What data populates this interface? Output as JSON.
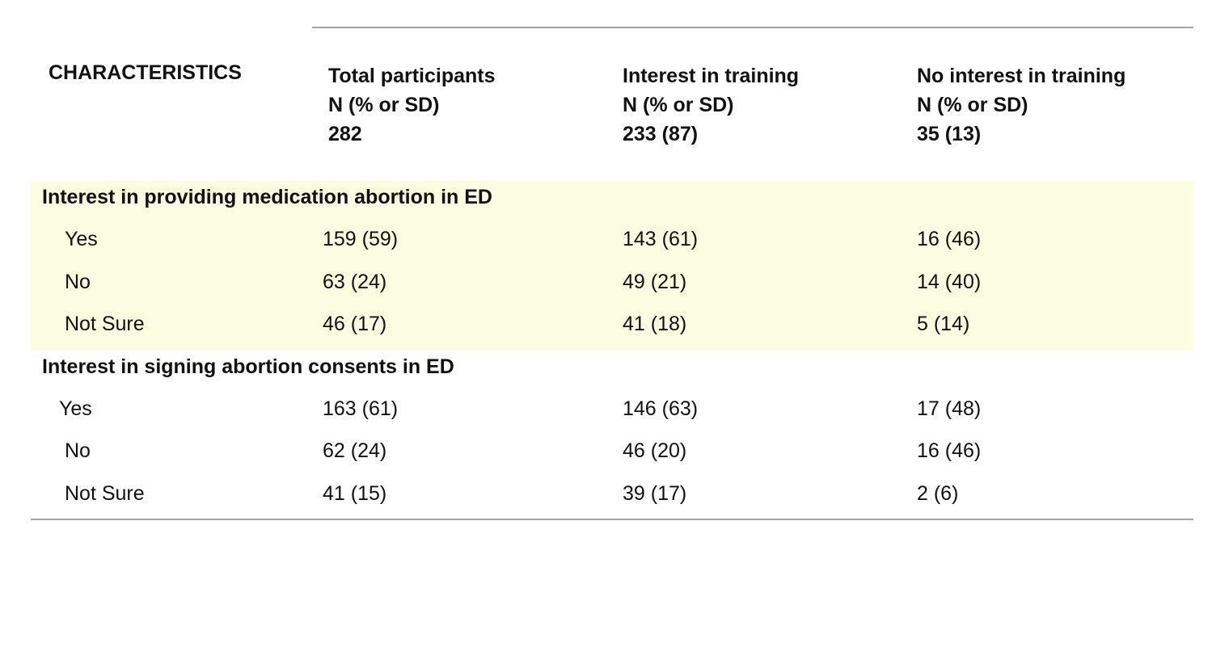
{
  "header": {
    "characteristics": "CHARACTERISTICS",
    "columns": [
      {
        "title": "Total participants",
        "subtitle": "N (% or SD)",
        "count": "282"
      },
      {
        "title": "Interest in training",
        "subtitle": "N (% or SD)",
        "count": "233 (87)"
      },
      {
        "title": "No interest in training",
        "subtitle": "N (% or SD)",
        "count": "35 (13)"
      }
    ]
  },
  "sections": [
    {
      "title": "Interest in providing medication abortion in ED",
      "highlight_color": "#fafde0",
      "rows": [
        {
          "label": "Yes",
          "values": [
            "159 (59)",
            "143 (61)",
            "16 (46)"
          ]
        },
        {
          "label": "No",
          "values": [
            "63 (24)",
            "49 (21)",
            "14 (40)"
          ]
        },
        {
          "label": "Not Sure",
          "values": [
            "46 (17)",
            "41 (18)",
            "5 (14)"
          ]
        }
      ]
    },
    {
      "title": "Interest in signing abortion consents in ED",
      "rows": [
        {
          "label": "Yes",
          "values": [
            "163 (61)",
            "146 (63)",
            "17 (48)"
          ]
        },
        {
          "label": "No",
          "values": [
            "62 (24)",
            "46 (20)",
            "16 (46)"
          ]
        },
        {
          "label": "Not Sure",
          "values": [
            "41 (15)",
            "39 (17)",
            "2 (6)"
          ]
        }
      ]
    }
  ]
}
